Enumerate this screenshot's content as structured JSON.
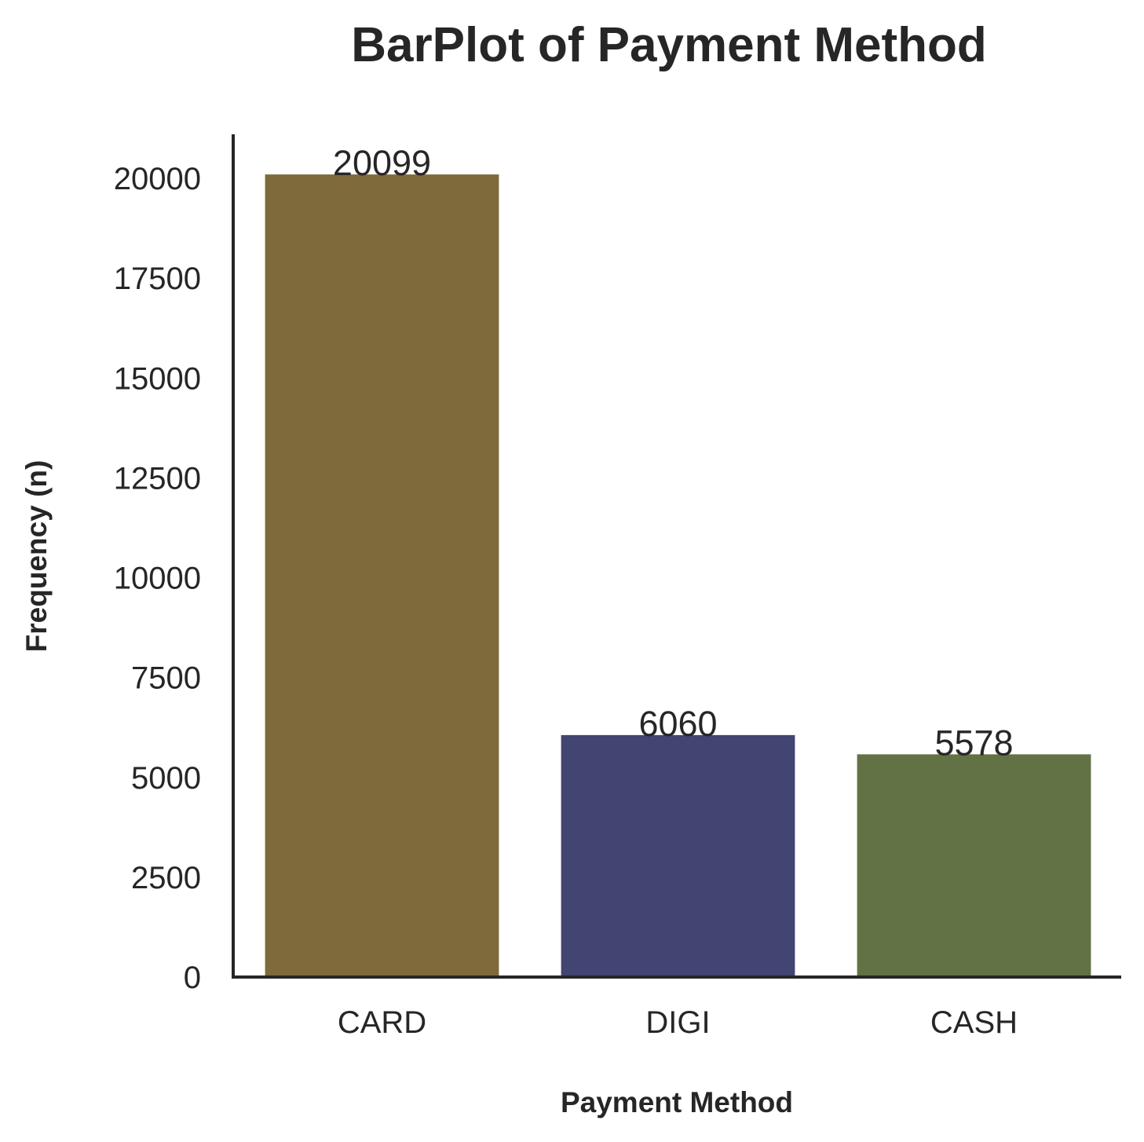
{
  "chart_data": {
    "type": "bar",
    "title": "BarPlot of Payment Method",
    "xlabel": "Payment Method",
    "ylabel": "Frequency (n)",
    "categories": [
      "CARD",
      "DIGI",
      "CASH"
    ],
    "values": [
      20099,
      6060,
      5578
    ],
    "data_labels": [
      "20099",
      "6060",
      "5578"
    ],
    "colors": [
      "#7f6a3c",
      "#424572",
      "#627244"
    ],
    "yticks": [
      0,
      2500,
      5000,
      7500,
      10000,
      12500,
      15000,
      17500,
      20000
    ],
    "ytick_labels": [
      "0",
      "2500",
      "5000",
      "7500",
      "10000",
      "12500",
      "15000",
      "17500",
      "20000"
    ],
    "ylim": [
      0,
      21103.95
    ],
    "grid": false,
    "legend": "none"
  }
}
